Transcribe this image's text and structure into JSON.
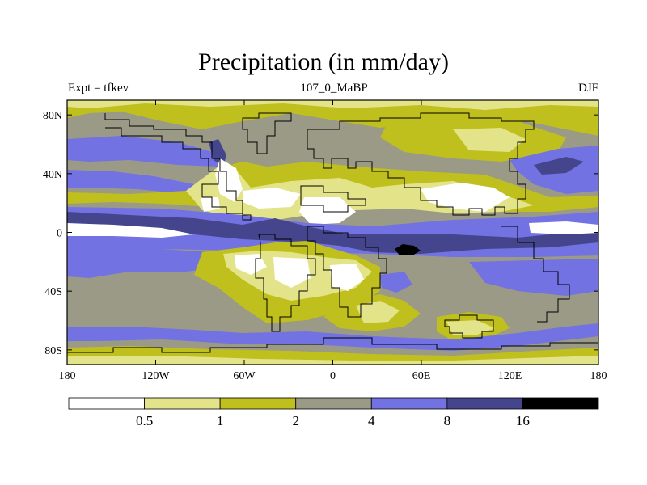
{
  "title": "Precipitation (in mm/day)",
  "subtitle_left": "Expt = tfkev",
  "subtitle_center": "107_0_MaBP",
  "subtitle_right": "DJF",
  "map": {
    "lon_range": [
      -180,
      180
    ],
    "lat_range": [
      -90,
      90
    ],
    "x_ticks": [
      {
        "value": -180,
        "label": "180"
      },
      {
        "value": -120,
        "label": "120W"
      },
      {
        "value": -60,
        "label": "60W"
      },
      {
        "value": 0,
        "label": "0"
      },
      {
        "value": 60,
        "label": "60E"
      },
      {
        "value": 120,
        "label": "120E"
      },
      {
        "value": 180,
        "label": "180"
      }
    ],
    "y_ticks": [
      {
        "value": 80,
        "label": "80N"
      },
      {
        "value": 40,
        "label": "40N"
      },
      {
        "value": 0,
        "label": "0"
      },
      {
        "value": -40,
        "label": "40S"
      },
      {
        "value": -80,
        "label": "80S"
      }
    ]
  },
  "colorbar": {
    "levels": [
      "0.5",
      "1",
      "2",
      "4",
      "8",
      "16"
    ],
    "colors": [
      "#ffffff",
      "#e3e38a",
      "#bfbf1d",
      "#9a9a86",
      "#7272e2",
      "#45458d",
      "#000000"
    ]
  }
}
